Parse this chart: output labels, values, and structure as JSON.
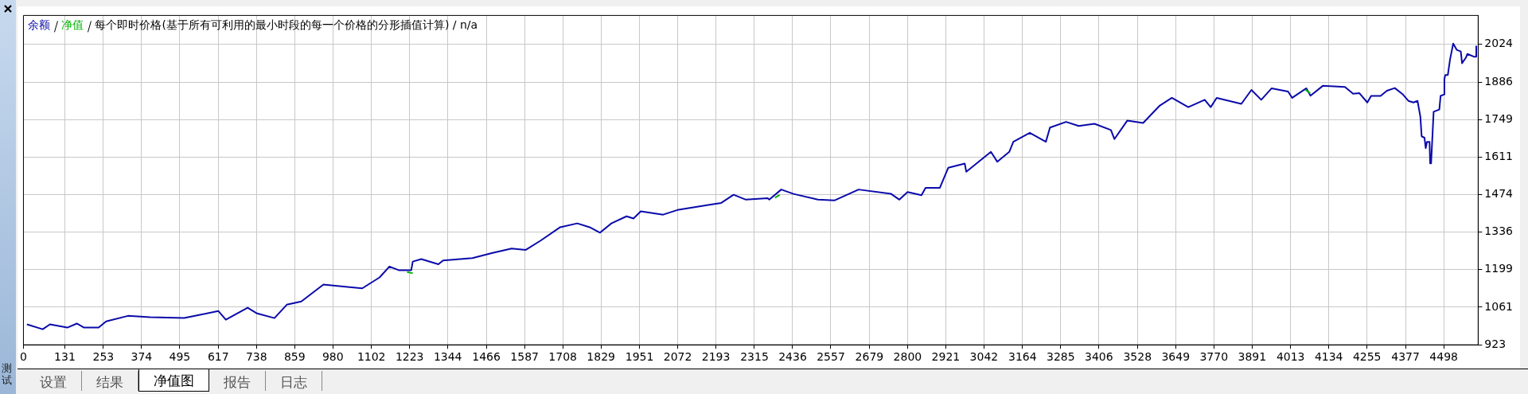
{
  "chart_data": {
    "type": "line",
    "title": "每个即时价格(基于所有可利用的最小时段的每一个价格的分形插值计算) / n/a",
    "legend": "top left",
    "grid": true,
    "marker": "none",
    "line_style": "solid",
    "xlim": [
      0,
      4607
    ],
    "xticks": [
      0,
      131,
      253,
      374,
      495,
      617,
      738,
      859,
      980,
      1102,
      1223,
      1344,
      1466,
      1587,
      1708,
      1829,
      1951,
      2072,
      2193,
      2315,
      2436,
      2557,
      2679,
      2800,
      2921,
      3042,
      3164,
      3285,
      3406,
      3528,
      3649,
      3770,
      3891,
      4013,
      4134,
      4255,
      4377,
      4498
    ],
    "ylim": [
      923,
      2130
    ],
    "yticks": [
      923,
      1061,
      1199,
      1336,
      1474,
      1611,
      1749,
      1886,
      2024
    ],
    "series": [
      {
        "name": "余额",
        "color": "#0a0aaa",
        "x": [
          11,
          61,
          84,
          139,
          169,
          192,
          238,
          262,
          331,
          401,
          509,
          556,
          617,
          641,
          710,
          740,
          795,
          834,
          880,
          950,
          1020,
          1073,
          1128,
          1159,
          1190,
          1228,
          1233,
          1260,
          1314,
          1329,
          1422,
          1483,
          1546,
          1591,
          1638,
          1700,
          1754,
          1793,
          1826,
          1862,
          1910,
          1932,
          1955,
          2026,
          2071,
          2165,
          2210,
          2249,
          2288,
          2357,
          2362,
          2400,
          2439,
          2516,
          2568,
          2645,
          2748,
          2774,
          2800,
          2844,
          2857,
          2902,
          2929,
          2981,
          2986,
          3064,
          3084,
          3122,
          3135,
          3187,
          3238,
          3251,
          3302,
          3342,
          3392,
          3444,
          3455,
          3496,
          3546,
          3599,
          3637,
          3689,
          3741,
          3760,
          3779,
          3857,
          3889,
          3920,
          3953,
          4005,
          4018,
          4063,
          4076,
          4115,
          4185,
          4211,
          4231,
          4256,
          4268,
          4298,
          4318,
          4343,
          4369,
          4386,
          4402,
          4415,
          4424,
          4428,
          4437,
          4441,
          4445,
          4453,
          4455,
          4458,
          4466,
          4484,
          4488,
          4498,
          4500,
          4503,
          4511,
          4518,
          4528,
          4539,
          4552,
          4556,
          4568,
          4573,
          4593,
          4600,
          4601
        ],
        "values": [
          998,
          980,
          998,
          986,
          1001,
          986,
          986,
          1009,
          1029,
          1024,
          1021,
          1032,
          1047,
          1015,
          1059,
          1038,
          1021,
          1070,
          1082,
          1144,
          1136,
          1130,
          1170,
          1210,
          1196,
          1196,
          1228,
          1237,
          1218,
          1232,
          1241,
          1259,
          1276,
          1271,
          1305,
          1354,
          1368,
          1354,
          1334,
          1368,
          1394,
          1386,
          1412,
          1400,
          1417,
          1435,
          1443,
          1473,
          1455,
          1460,
          1455,
          1492,
          1476,
          1455,
          1452,
          1492,
          1476,
          1455,
          1483,
          1471,
          1498,
          1498,
          1572,
          1587,
          1557,
          1630,
          1594,
          1630,
          1667,
          1700,
          1667,
          1719,
          1740,
          1725,
          1733,
          1710,
          1677,
          1745,
          1736,
          1800,
          1828,
          1794,
          1821,
          1794,
          1828,
          1806,
          1857,
          1821,
          1863,
          1851,
          1828,
          1863,
          1836,
          1872,
          1868,
          1843,
          1845,
          1811,
          1835,
          1835,
          1854,
          1864,
          1840,
          1817,
          1811,
          1817,
          1759,
          1687,
          1682,
          1644,
          1667,
          1667,
          1588,
          1588,
          1777,
          1785,
          1835,
          1840,
          1897,
          1912,
          1912,
          1969,
          2027,
          2004,
          1998,
          1955,
          1975,
          1989,
          1979,
          1979,
          2019
        ]
      },
      {
        "name": "净值",
        "color": "#00b400",
        "x": [
          1215,
          1233,
          null,
          2380,
          2395,
          null,
          4060,
          4075
        ],
        "values": [
          1190,
          1185,
          null,
          1462,
          1472,
          null,
          1858,
          1845
        ]
      }
    ],
    "annotations": [
      "设置",
      "结果",
      "净值图",
      "报告",
      "日志",
      "测试"
    ]
  }
}
